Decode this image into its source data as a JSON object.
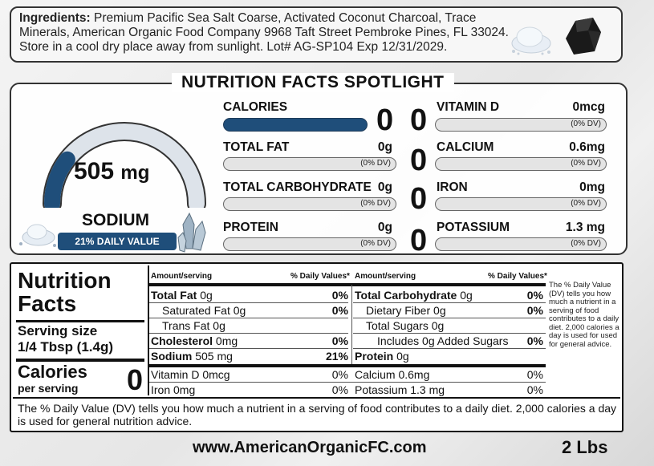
{
  "ingredients": {
    "label": "Ingredients:",
    "text": "Premium Pacific Sea Salt Coarse, Activated Coconut Charcoal, Trace Minerals, American Organic Food Company 9968 Taft Street Pembroke Pines, FL 33024. Store in a cool dry place away from sunlight. Lot# AG-SP104 Exp 12/31/2029."
  },
  "spotlight": {
    "title": "NUTRITION FACTS SPOTLIGHT",
    "sodium_value": "505",
    "sodium_unit": "mg",
    "sodium_label": "SODIUM",
    "sodium_dv": "21% DAILY VALUE",
    "sodium_dv_fraction": 0.21,
    "items": [
      {
        "name": "CALORIES",
        "value": "",
        "dv": "",
        "big": "0"
      },
      {
        "name": "TOTAL FAT",
        "value": "0g",
        "dv": "(0% DV)",
        "big": ""
      },
      {
        "name": "TOTAL CARBOHYDRATE",
        "value": "0g",
        "dv": "(0% DV)",
        "big": ""
      },
      {
        "name": "PROTEIN",
        "value": "0g",
        "dv": "(0% DV)",
        "big": ""
      }
    ],
    "middle_zeros": [
      "0",
      "0",
      "0",
      "0"
    ],
    "right_items": [
      {
        "name": "VITAMIN D",
        "value": "0mcg",
        "dv": "(0% DV)"
      },
      {
        "name": "CALCIUM",
        "value": "0.6mg",
        "dv": "(0% DV)"
      },
      {
        "name": "IRON",
        "value": "0mg",
        "dv": "(0% DV)"
      },
      {
        "name": "POTASSIUM",
        "value": "1.3 mg",
        "dv": "(0% DV)"
      }
    ]
  },
  "facts": {
    "title_line1": "Nutrition",
    "title_line2": "Facts",
    "serving_label": "Serving size",
    "serving_value": "1/4 Tbsp (1.4g)",
    "calories_label": "Calories",
    "per_serving": "per serving",
    "calories_value": "0",
    "col_amount": "Amount/serving",
    "col_dv": "% Daily Values*",
    "left_rows": [
      {
        "label": "Total Fat",
        "amount": "0g",
        "pct": "0%"
      },
      {
        "label": "Saturated Fat",
        "amount": "0g",
        "pct": "0%"
      },
      {
        "label": "Trans Fat",
        "amount": "0g",
        "pct": ""
      },
      {
        "label": "Cholesterol",
        "amount": "0mg",
        "pct": "0%"
      },
      {
        "label": "Sodium",
        "amount": "505 mg",
        "pct": "21%"
      }
    ],
    "right_rows": [
      {
        "label": "Total Carbohydrate",
        "amount": "0g",
        "pct": "0%"
      },
      {
        "label": "Dietary Fiber",
        "amount": "0g",
        "pct": "0%"
      },
      {
        "label": "Total Sugars",
        "amount": "0g",
        "pct": ""
      },
      {
        "label": "Includes",
        "amount": "0g Added Sugars",
        "pct": "0%"
      },
      {
        "label": "Protein",
        "amount": "0g",
        "pct": ""
      }
    ],
    "vit_rows": [
      {
        "text": "Vitamin D 0mcg",
        "pct": "0%"
      },
      {
        "text": "Iron 0mg",
        "pct": "0%"
      },
      {
        "text": "Calcium 0.6mg",
        "pct": "0%"
      },
      {
        "text": "Potassium 1.3 mg",
        "pct": "0%"
      }
    ],
    "side_note": "The % Daily Value (DV) tells you how much a nutrient in a serving of food contributes to a daily diet. 2,000 calories a day is used for used for general advice.",
    "footnote": "The % Daily Value (DV) tells you how much a nutrient in a serving of food contributes to a daily diet. 2,000 calories a day is used for general nutrition advice."
  },
  "footer": {
    "url": "www.AmericanOrganicFC.com",
    "weight": "2 Lbs"
  },
  "colors": {
    "accent": "#1f4e7a",
    "bar_empty": "#e4e4e4"
  }
}
